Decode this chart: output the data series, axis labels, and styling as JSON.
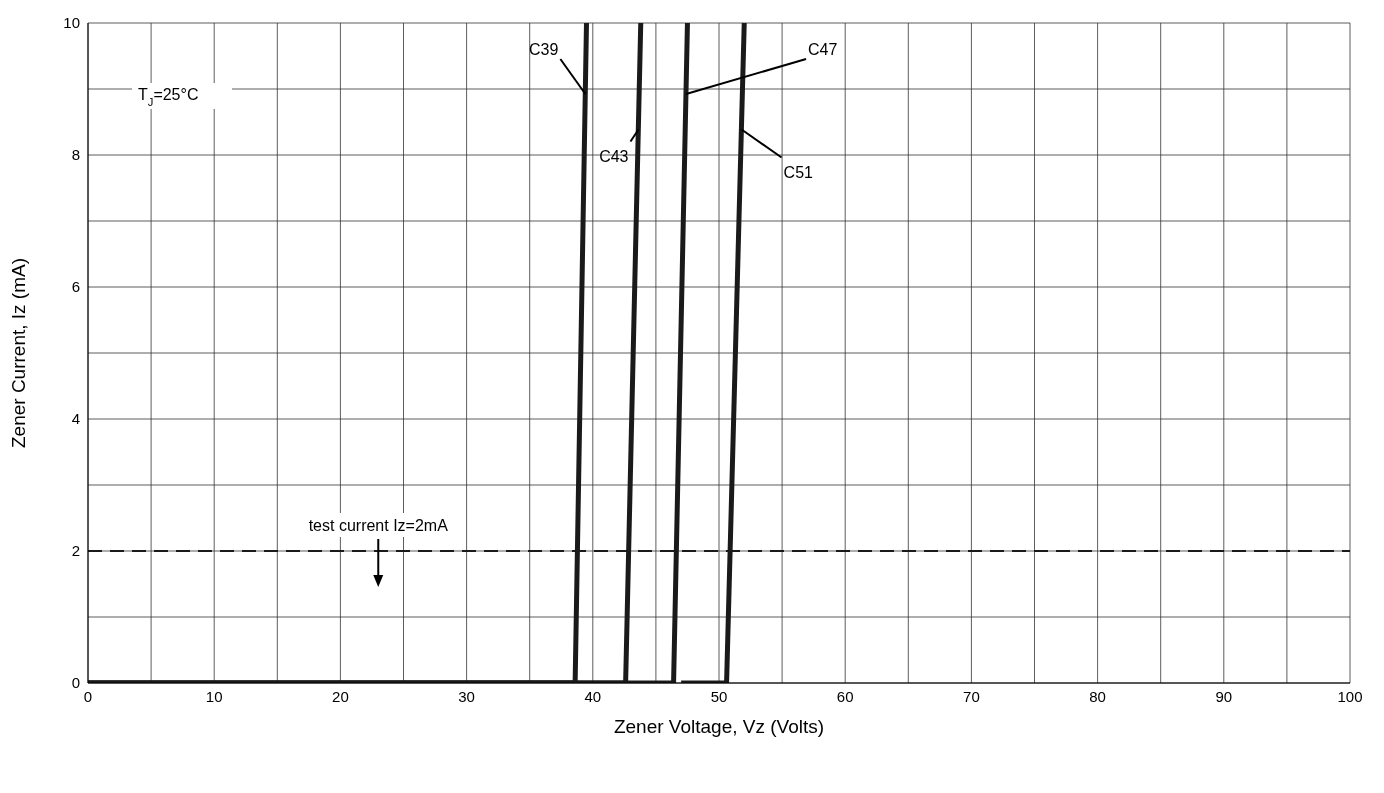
{
  "chart_data": {
    "type": "line",
    "xlabel": "Zener Voltage, Vz (Volts)",
    "ylabel": "Zener Current, Iz (mA)",
    "xlim": [
      0,
      100
    ],
    "ylim": [
      0,
      10
    ],
    "xticks": [
      0,
      {
        "value": 5,
        "label": null
      },
      10,
      {
        "value": 15,
        "label": null
      },
      20,
      {
        "value": 25,
        "label": null
      },
      30,
      {
        "value": 35,
        "label": null
      },
      40,
      {
        "value": 45,
        "label": null
      },
      50,
      {
        "value": 55,
        "label": null
      },
      60,
      {
        "value": 65,
        "label": null
      },
      70,
      {
        "value": 75,
        "label": null
      },
      80,
      {
        "value": 85,
        "label": null
      },
      90,
      {
        "value": 95,
        "label": null
      },
      100
    ],
    "yticks": [
      0,
      {
        "value": 1,
        "label": null
      },
      2,
      {
        "value": 3,
        "label": null
      },
      4,
      {
        "value": 5,
        "label": null
      },
      6,
      {
        "value": 7,
        "label": null
      },
      8,
      {
        "value": 9,
        "label": null
      },
      10
    ],
    "grid": true,
    "marker": "none",
    "line_style": "solid",
    "series": [
      {
        "name": "C39",
        "color": "#1a1a1a",
        "x": [
          0,
          38.6,
          39.5
        ],
        "values": [
          0,
          0,
          10
        ]
      },
      {
        "name": "C43",
        "color": "#1a1a1a",
        "x": [
          0,
          42.6,
          43.8
        ],
        "values": [
          0,
          0,
          10
        ]
      },
      {
        "name": "C47",
        "color": "#1a1a1a",
        "x": [
          0,
          46.4,
          47.5
        ],
        "values": [
          0,
          0,
          10
        ]
      },
      {
        "name": "C51",
        "color": "#1a1a1a",
        "x": [
          47,
          50.6,
          52.0
        ],
        "values": [
          0,
          0,
          10
        ]
      }
    ],
    "ref_lines": [
      {
        "axis": "y",
        "value": 2,
        "color": "#1a1a1a",
        "line_style": "dashed"
      }
    ],
    "annotations": [
      "T$_{J}$=25°C",
      {
        "text": "test current Iz=2mA",
        "x": 23,
        "y": 2
      }
    ]
  }
}
